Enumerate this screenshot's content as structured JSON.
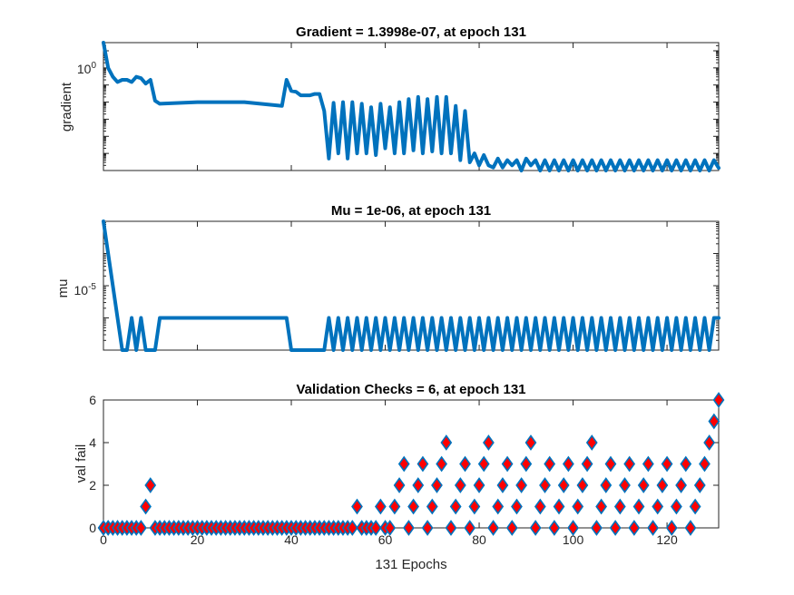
{
  "chart_data": [
    {
      "type": "line",
      "title": "Gradient = 1.3998e-07, at epoch 131",
      "ylabel": "gradient",
      "yscale": "log",
      "y_ticks": [
        {
          "value": 1,
          "label": "10",
          "exp": "0"
        }
      ],
      "xlim": [
        0,
        131
      ],
      "ylim": [
        1e-07,
        3
      ],
      "color": "#0072BD",
      "series": [
        {
          "x": [
            0,
            1,
            2,
            3,
            4,
            5,
            6,
            7,
            8,
            9,
            10,
            11,
            12,
            20,
            30,
            38,
            39,
            40,
            41,
            42,
            43,
            44,
            45,
            46,
            47,
            48,
            49,
            50,
            51,
            52,
            53,
            54,
            55,
            56,
            57,
            58,
            59,
            60,
            61,
            62,
            63,
            64,
            65,
            66,
            67,
            68,
            69,
            70,
            71,
            72,
            73,
            74,
            75,
            76,
            77,
            78,
            79,
            80,
            81,
            82,
            83,
            84,
            85,
            86,
            87,
            88,
            89,
            90,
            91,
            92,
            93,
            94,
            95,
            96,
            97,
            98,
            99,
            100,
            101,
            102,
            103,
            104,
            105,
            106,
            107,
            108,
            109,
            110,
            111,
            112,
            113,
            114,
            115,
            116,
            117,
            118,
            119,
            120,
            121,
            122,
            123,
            124,
            125,
            126,
            127,
            128,
            129,
            130,
            131
          ],
          "y": [
            3,
            0.1,
            0.03,
            0.015,
            0.02,
            0.02,
            0.015,
            0.03,
            0.025,
            0.012,
            0.02,
            0.0012,
            0.0008,
            0.001,
            0.001,
            0.0006,
            0.02,
            0.0045,
            0.004,
            0.0025,
            0.0025,
            0.0025,
            0.003,
            0.003,
            0.0003,
            5e-07,
            0.0009,
            1e-06,
            0.001,
            5e-07,
            0.001,
            1e-06,
            0.0008,
            1e-06,
            0.0005,
            8e-07,
            0.0008,
            2e-06,
            0.0005,
            1e-06,
            0.001,
            1e-06,
            0.0015,
            1.5e-06,
            0.002,
            1e-06,
            0.0015,
            1.3e-06,
            0.002,
            1e-06,
            0.002,
            1e-06,
            0.0006,
            4e-07,
            0.0003,
            3e-07,
            1e-06,
            2e-07,
            8e-07,
            2e-07,
            1.5e-07,
            5e-07,
            1.5e-07,
            4e-07,
            2e-07,
            4e-07,
            1e-07,
            5e-07,
            2e-07,
            4e-07,
            1e-07,
            4e-07,
            1e-07,
            4e-07,
            1e-07,
            4e-07,
            1e-07,
            4e-07,
            1e-07,
            4e-07,
            1e-07,
            4e-07,
            1e-07,
            4e-07,
            1e-07,
            4e-07,
            1e-07,
            4e-07,
            1e-07,
            4e-07,
            1e-07,
            4e-07,
            1e-07,
            4e-07,
            1e-07,
            4e-07,
            1e-07,
            4e-07,
            1e-07,
            4e-07,
            1e-07,
            4e-07,
            1e-07,
            4e-07,
            1e-07,
            4e-07,
            1e-07,
            4e-07,
            1.4e-07
          ]
        }
      ]
    },
    {
      "type": "line",
      "title": "Mu = 1e-06, at epoch 131",
      "ylabel": "mu",
      "yscale": "log",
      "y_ticks": [
        {
          "value": 1e-05,
          "label": "10",
          "exp": "-5"
        }
      ],
      "xlim": [
        0,
        131
      ],
      "ylim": [
        1e-07,
        0.001
      ],
      "color": "#0072BD",
      "series": [
        {
          "x": [
            0,
            4,
            5,
            6,
            7,
            8,
            9,
            10,
            11,
            12,
            38,
            39,
            40,
            47,
            48,
            49,
            50,
            51,
            52,
            53,
            54,
            55,
            56,
            57,
            58,
            59,
            60,
            61,
            62,
            63,
            64,
            65,
            66,
            67,
            68,
            69,
            70,
            71,
            72,
            73,
            74,
            75,
            76,
            77,
            78,
            79,
            80,
            81,
            82,
            83,
            84,
            85,
            86,
            87,
            88,
            89,
            90,
            91,
            92,
            93,
            94,
            95,
            96,
            97,
            98,
            99,
            100,
            101,
            102,
            103,
            104,
            105,
            106,
            107,
            108,
            109,
            110,
            111,
            112,
            113,
            114,
            115,
            116,
            117,
            118,
            119,
            120,
            121,
            122,
            123,
            124,
            125,
            126,
            127,
            128,
            129,
            130,
            131
          ],
          "y": [
            0.001,
            1e-07,
            1e-07,
            1e-06,
            1e-07,
            1e-06,
            1e-07,
            1e-07,
            1e-07,
            1e-06,
            1e-06,
            1e-06,
            1e-07,
            1e-07,
            1e-06,
            1e-07,
            1e-06,
            1e-07,
            1e-06,
            1e-07,
            1e-06,
            1e-07,
            1e-06,
            1e-07,
            1e-06,
            1e-07,
            1e-06,
            1e-07,
            1e-06,
            1e-07,
            1e-06,
            1e-07,
            1e-06,
            1e-07,
            1e-06,
            1e-07,
            1e-06,
            1e-07,
            1e-06,
            1e-07,
            1e-06,
            1e-07,
            1e-06,
            1e-07,
            1e-06,
            1e-07,
            1e-06,
            1e-07,
            1e-06,
            1e-07,
            1e-06,
            1e-07,
            1e-06,
            1e-07,
            1e-06,
            1e-07,
            1e-06,
            1e-07,
            1e-06,
            1e-07,
            1e-06,
            1e-07,
            1e-06,
            1e-07,
            1e-06,
            1e-07,
            1e-06,
            1e-07,
            1e-06,
            1e-07,
            1e-06,
            1e-07,
            1e-06,
            1e-07,
            1e-06,
            1e-07,
            1e-06,
            1e-07,
            1e-06,
            1e-07,
            1e-06,
            1e-07,
            1e-06,
            1e-07,
            1e-06,
            1e-07,
            1e-06,
            1e-07,
            1e-06,
            1e-07,
            1e-06,
            1e-07,
            1e-06,
            1e-07,
            1e-06,
            1e-07,
            1e-06,
            1e-06
          ]
        }
      ]
    },
    {
      "type": "scatter",
      "title": "Validation Checks = 6, at epoch 131",
      "ylabel": "val fail",
      "xlabel": "131 Epochs",
      "xlim": [
        0,
        131
      ],
      "ylim": [
        0,
        6
      ],
      "x_ticks": [
        0,
        20,
        40,
        60,
        80,
        100,
        120
      ],
      "y_ticks": [
        0,
        2,
        4,
        6
      ],
      "marker": "diamond",
      "marker_face": "#FF0000",
      "marker_edge": "#0072BD",
      "series": [
        {
          "x": [
            0,
            1,
            2,
            3,
            4,
            5,
            6,
            7,
            8,
            9,
            10,
            11,
            12,
            13,
            14,
            15,
            16,
            17,
            18,
            19,
            20,
            21,
            22,
            23,
            24,
            25,
            26,
            27,
            28,
            29,
            30,
            31,
            32,
            33,
            34,
            35,
            36,
            37,
            38,
            39,
            40,
            41,
            42,
            43,
            44,
            45,
            46,
            47,
            48,
            49,
            50,
            51,
            52,
            53,
            54,
            55,
            56,
            57,
            58,
            59,
            60,
            61,
            62,
            63,
            64,
            65,
            66,
            67,
            68,
            69,
            70,
            71,
            72,
            73,
            74,
            75,
            76,
            77,
            78,
            79,
            80,
            81,
            82,
            83,
            84,
            85,
            86,
            87,
            88,
            89,
            90,
            91,
            92,
            93,
            94,
            95,
            96,
            97,
            98,
            99,
            100,
            101,
            102,
            103,
            104,
            105,
            106,
            107,
            108,
            109,
            110,
            111,
            112,
            113,
            114,
            115,
            116,
            117,
            118,
            119,
            120,
            121,
            122,
            123,
            124,
            125,
            126,
            127,
            128,
            129,
            130,
            131
          ],
          "y": [
            0,
            0,
            0,
            0,
            0,
            0,
            0,
            0,
            0,
            1,
            2,
            0,
            0,
            0,
            0,
            0,
            0,
            0,
            0,
            0,
            0,
            0,
            0,
            0,
            0,
            0,
            0,
            0,
            0,
            0,
            0,
            0,
            0,
            0,
            0,
            0,
            0,
            0,
            0,
            0,
            0,
            0,
            0,
            0,
            0,
            0,
            0,
            0,
            0,
            0,
            0,
            0,
            0,
            0,
            1,
            0,
            0,
            0,
            0,
            1,
            0,
            0,
            1,
            2,
            3,
            0,
            1,
            2,
            3,
            0,
            1,
            2,
            3,
            4,
            0,
            1,
            2,
            3,
            0,
            1,
            2,
            3,
            4,
            0,
            1,
            2,
            3,
            0,
            1,
            2,
            3,
            4,
            0,
            1,
            2,
            3,
            0,
            1,
            2,
            3,
            0,
            1,
            2,
            3,
            4,
            0,
            1,
            2,
            3,
            0,
            1,
            2,
            3,
            0,
            1,
            2,
            3,
            0,
            1,
            2,
            3,
            0,
            1,
            2,
            3,
            0,
            1,
            2,
            3,
            4,
            5,
            6
          ]
        }
      ]
    }
  ]
}
